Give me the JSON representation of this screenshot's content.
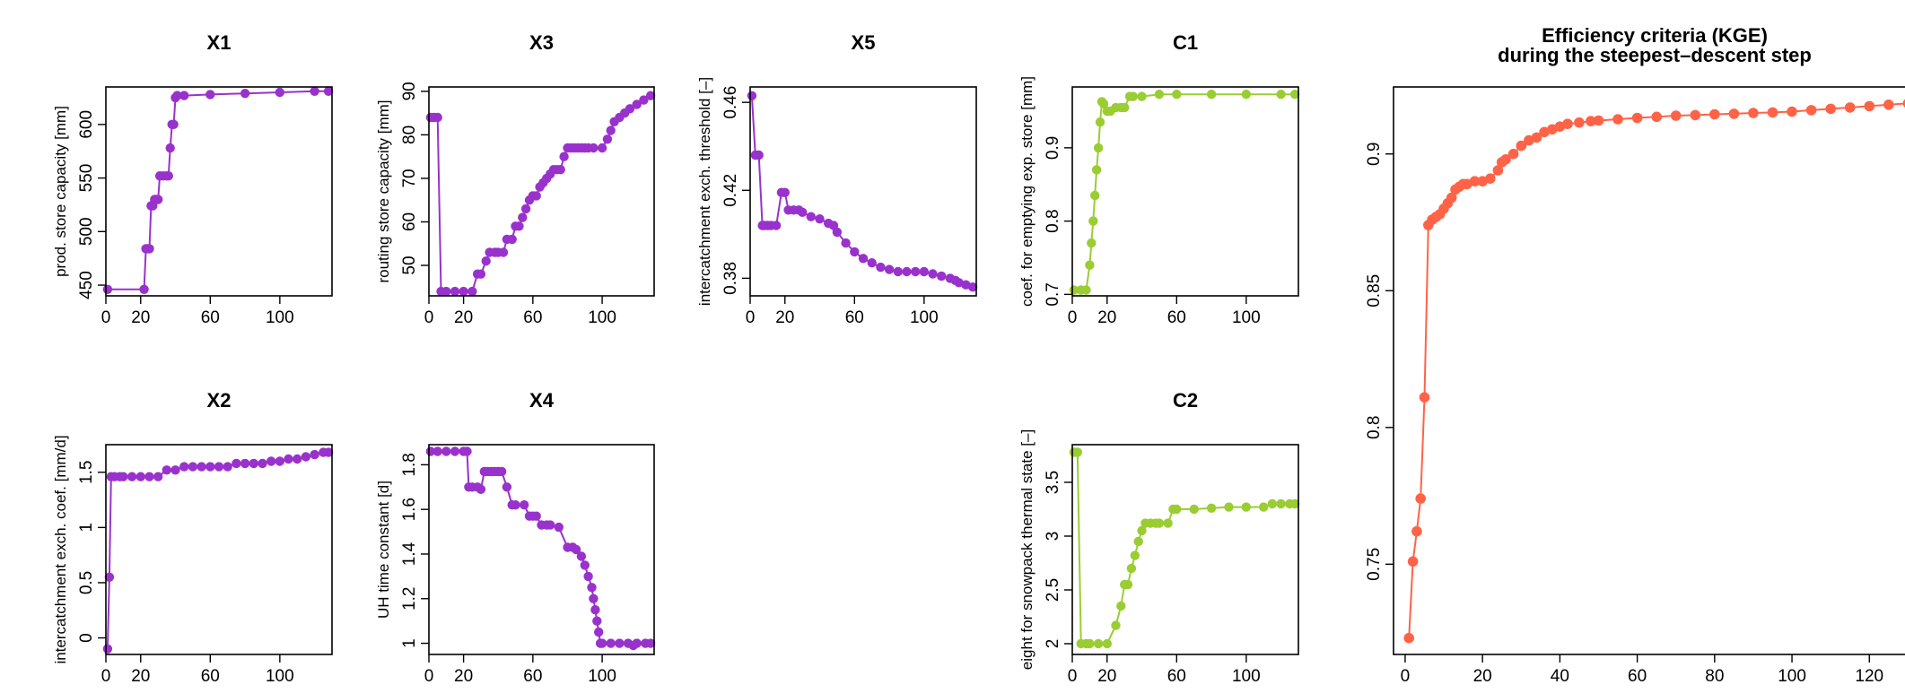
{
  "chart_data": [
    {
      "type": "scatter",
      "title": "X1",
      "xlabel": "",
      "ylabel": "prod. store capacity [mm]",
      "color": "#9932CC",
      "connected": true,
      "xlim": [
        0,
        130
      ],
      "ylim": [
        440,
        635
      ],
      "xticks": [
        0,
        20,
        60,
        100
      ],
      "yticks": [
        450,
        500,
        550,
        600
      ],
      "x": [
        1,
        22,
        23,
        24,
        25,
        26,
        27,
        28,
        29,
        30,
        31,
        33,
        35,
        36,
        37,
        38,
        39,
        40,
        41,
        45,
        60,
        80,
        100,
        120,
        128
      ],
      "y": [
        446,
        446,
        484,
        484,
        484,
        524,
        524,
        530,
        530,
        530,
        552,
        552,
        552,
        552,
        578,
        600,
        600,
        625,
        627,
        627,
        628,
        629,
        630,
        631,
        631
      ]
    },
    {
      "type": "scatter",
      "title": "X3",
      "xlabel": "",
      "ylabel": "routing store capacity [mm]",
      "color": "#9932CC",
      "connected": true,
      "xlim": [
        0,
        130
      ],
      "ylim": [
        43,
        91
      ],
      "xticks": [
        0,
        20,
        60,
        100
      ],
      "yticks": [
        50,
        60,
        70,
        80,
        90
      ],
      "x": [
        1,
        3,
        5,
        7,
        10,
        15,
        20,
        25,
        28,
        30,
        33,
        35,
        38,
        40,
        43,
        45,
        48,
        50,
        52,
        54,
        56,
        58,
        60,
        62,
        64,
        66,
        68,
        70,
        72,
        74,
        76,
        78,
        80,
        82,
        84,
        86,
        88,
        90,
        92,
        95,
        100,
        103,
        105,
        107,
        110,
        113,
        116,
        120,
        124,
        128
      ],
      "y": [
        84,
        84,
        84,
        44,
        44,
        44,
        44,
        44,
        48,
        48,
        51,
        53,
        53,
        53,
        53,
        56,
        56,
        59,
        59,
        61,
        63,
        65,
        66,
        66,
        68,
        69,
        70,
        71,
        72,
        72,
        72,
        75,
        77,
        77,
        77,
        77,
        77,
        77,
        77,
        77,
        77,
        79,
        81,
        83,
        84,
        85,
        86,
        87,
        88,
        89
      ]
    },
    {
      "type": "scatter",
      "title": "X5",
      "xlabel": "",
      "ylabel": "intercatchment exch. threshold [–]",
      "color": "#9932CC",
      "connected": true,
      "xlim": [
        0,
        130
      ],
      "ylim": [
        0.372,
        0.467
      ],
      "xticks": [
        0,
        20,
        60,
        100
      ],
      "yticks": [
        0.38,
        0.42,
        0.46
      ],
      "x": [
        1,
        3,
        5,
        7,
        8,
        10,
        12,
        15,
        18,
        20,
        22,
        25,
        28,
        30,
        35,
        40,
        45,
        48,
        50,
        55,
        60,
        65,
        70,
        75,
        80,
        85,
        90,
        95,
        100,
        105,
        110,
        115,
        118,
        120,
        124,
        128
      ],
      "y": [
        0.463,
        0.436,
        0.436,
        0.404,
        0.404,
        0.404,
        0.404,
        0.404,
        0.419,
        0.419,
        0.411,
        0.411,
        0.411,
        0.41,
        0.408,
        0.407,
        0.405,
        0.404,
        0.401,
        0.396,
        0.392,
        0.389,
        0.387,
        0.385,
        0.384,
        0.383,
        0.383,
        0.383,
        0.383,
        0.382,
        0.381,
        0.38,
        0.379,
        0.378,
        0.377,
        0.376
      ]
    },
    {
      "type": "scatter",
      "title": "C1",
      "xlabel": "",
      "ylabel": "coef. for emptying exp. store [mm]",
      "color": "#9ACD32",
      "connected": true,
      "xlim": [
        0,
        130
      ],
      "ylim": [
        0.698,
        0.983
      ],
      "xticks": [
        0,
        20,
        60,
        100
      ],
      "yticks": [
        0.7,
        0.8,
        0.9
      ],
      "x": [
        1,
        5,
        8,
        10,
        11,
        12,
        13,
        14,
        15,
        16,
        17,
        18,
        20,
        22,
        25,
        28,
        30,
        33,
        35,
        40,
        50,
        60,
        80,
        100,
        120,
        128
      ],
      "y": [
        0.706,
        0.706,
        0.706,
        0.74,
        0.77,
        0.8,
        0.835,
        0.87,
        0.9,
        0.935,
        0.963,
        0.96,
        0.95,
        0.95,
        0.955,
        0.955,
        0.955,
        0.97,
        0.97,
        0.97,
        0.973,
        0.973,
        0.973,
        0.973,
        0.973,
        0.973
      ]
    },
    {
      "type": "scatter",
      "title": "X2",
      "xlabel": "",
      "ylabel": "intercatchment exch. coef. [mm/d]",
      "color": "#9932CC",
      "connected": true,
      "xlim": [
        0,
        130
      ],
      "ylim": [
        -0.15,
        1.75
      ],
      "xticks": [
        0,
        20,
        60,
        100
      ],
      "yticks": [
        0.0,
        0.5,
        1.0,
        1.5
      ],
      "x": [
        1,
        2,
        3,
        5,
        8,
        10,
        15,
        20,
        25,
        30,
        35,
        40,
        45,
        50,
        55,
        60,
        65,
        70,
        75,
        80,
        85,
        90,
        95,
        100,
        105,
        110,
        115,
        120,
        125,
        128
      ],
      "y": [
        -0.1,
        0.55,
        1.46,
        1.46,
        1.46,
        1.46,
        1.46,
        1.46,
        1.46,
        1.46,
        1.52,
        1.52,
        1.55,
        1.55,
        1.55,
        1.55,
        1.55,
        1.55,
        1.58,
        1.58,
        1.58,
        1.58,
        1.6,
        1.6,
        1.62,
        1.62,
        1.64,
        1.66,
        1.68,
        1.68
      ]
    },
    {
      "type": "scatter",
      "title": "X4",
      "xlabel": "",
      "ylabel": "UH time constant [d]",
      "color": "#9932CC",
      "connected": true,
      "xlim": [
        0,
        130
      ],
      "ylim": [
        0.95,
        1.89
      ],
      "xticks": [
        0,
        20,
        60,
        100
      ],
      "yticks": [
        1.0,
        1.2,
        1.4,
        1.6,
        1.8
      ],
      "x": [
        1,
        5,
        10,
        15,
        20,
        22,
        23,
        25,
        28,
        30,
        32,
        34,
        36,
        38,
        40,
        42,
        45,
        48,
        50,
        55,
        58,
        60,
        62,
        65,
        68,
        70,
        75,
        80,
        83,
        85,
        88,
        90,
        92,
        94,
        95,
        96,
        97,
        98,
        99,
        100,
        105,
        110,
        115,
        118,
        120,
        125,
        128
      ],
      "y": [
        1.86,
        1.86,
        1.86,
        1.86,
        1.86,
        1.86,
        1.7,
        1.7,
        1.7,
        1.69,
        1.77,
        1.77,
        1.77,
        1.77,
        1.77,
        1.77,
        1.7,
        1.62,
        1.62,
        1.62,
        1.57,
        1.57,
        1.57,
        1.53,
        1.53,
        1.53,
        1.52,
        1.43,
        1.43,
        1.42,
        1.39,
        1.35,
        1.3,
        1.25,
        1.2,
        1.15,
        1.1,
        1.05,
        1.0,
        1.0,
        1.0,
        1.0,
        1.0,
        0.99,
        1.0,
        1.0,
        1.0
      ]
    },
    {
      "type": "scatter",
      "title": "C2",
      "xlabel": "",
      "ylabel": "eight for snowpack thermal state [–]",
      "color": "#9ACD32",
      "connected": true,
      "xlim": [
        0,
        130
      ],
      "ylim": [
        1.9,
        3.85
      ],
      "xticks": [
        0,
        20,
        60,
        100
      ],
      "yticks": [
        2.0,
        2.5,
        3.0,
        3.5
      ],
      "x": [
        1,
        3,
        5,
        8,
        10,
        15,
        20,
        25,
        28,
        30,
        32,
        34,
        36,
        38,
        40,
        42,
        45,
        48,
        50,
        55,
        58,
        60,
        70,
        80,
        90,
        100,
        110,
        115,
        120,
        125,
        128
      ],
      "y": [
        3.78,
        3.78,
        2.0,
        2.0,
        2.0,
        2.0,
        2.0,
        2.17,
        2.35,
        2.55,
        2.55,
        2.7,
        2.82,
        2.95,
        3.05,
        3.12,
        3.12,
        3.12,
        3.12,
        3.12,
        3.25,
        3.25,
        3.25,
        3.26,
        3.27,
        3.27,
        3.27,
        3.3,
        3.3,
        3.3,
        3.3
      ]
    },
    {
      "type": "scatter",
      "title": "Efficiency criteria (KGE)\nduring the steepest–descent step",
      "xlabel": "",
      "ylabel": "",
      "color": "#FF6347",
      "connected": true,
      "xlim": [
        -3,
        132
      ],
      "ylim": [
        0.717,
        0.9245
      ],
      "xticks": [
        0,
        20,
        40,
        60,
        80,
        100,
        120
      ],
      "yticks": [
        0.75,
        0.8,
        0.85,
        0.9
      ],
      "x": [
        1,
        2,
        3,
        4,
        5,
        6,
        7,
        8,
        9,
        10,
        11,
        12,
        13,
        14,
        15,
        16,
        18,
        20,
        22,
        24,
        25,
        26,
        28,
        30,
        32,
        34,
        36,
        38,
        40,
        42,
        45,
        48,
        50,
        55,
        60,
        65,
        70,
        75,
        80,
        85,
        90,
        95,
        100,
        105,
        110,
        115,
        120,
        125,
        130
      ],
      "y": [
        0.723,
        0.751,
        0.762,
        0.774,
        0.811,
        0.874,
        0.876,
        0.877,
        0.878,
        0.88,
        0.882,
        0.884,
        0.887,
        0.888,
        0.889,
        0.889,
        0.89,
        0.89,
        0.891,
        0.894,
        0.897,
        0.898,
        0.9,
        0.903,
        0.905,
        0.906,
        0.908,
        0.909,
        0.91,
        0.911,
        0.9115,
        0.912,
        0.9122,
        0.9127,
        0.9132,
        0.9136,
        0.914,
        0.9142,
        0.9145,
        0.9147,
        0.915,
        0.9152,
        0.9155,
        0.916,
        0.9165,
        0.917,
        0.9175,
        0.918,
        0.9185
      ]
    }
  ]
}
